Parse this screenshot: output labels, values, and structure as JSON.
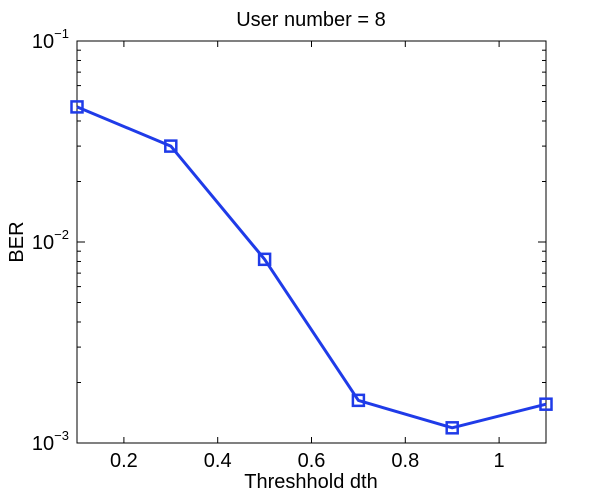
{
  "chart_data": {
    "type": "line",
    "title": "User number = 8",
    "xlabel": "Threshhold dth",
    "ylabel": "BER",
    "xlim": [
      0.1,
      1.1
    ],
    "ylim": [
      0.001,
      0.1
    ],
    "yscale": "log",
    "x_ticks": [
      0.2,
      0.4,
      0.6,
      0.8,
      1
    ],
    "x_tick_labels": [
      "0.2",
      "0.4",
      "0.6",
      "0.8",
      "1"
    ],
    "y_ticks": [
      {
        "value": 0.1,
        "base": "10",
        "exponent": "−1"
      },
      {
        "value": 0.01,
        "base": "10",
        "exponent": "−2"
      },
      {
        "value": 0.001,
        "base": "10",
        "exponent": "−3"
      }
    ],
    "grid": false,
    "legend": "none",
    "series": [
      {
        "color": "#1f3be8",
        "marker": "square",
        "x": [
          0.1,
          0.3,
          0.5,
          0.7,
          0.9,
          1.1
        ],
        "y": [
          0.047,
          0.03,
          0.0082,
          0.00163,
          0.00119,
          0.00156
        ]
      }
    ]
  }
}
